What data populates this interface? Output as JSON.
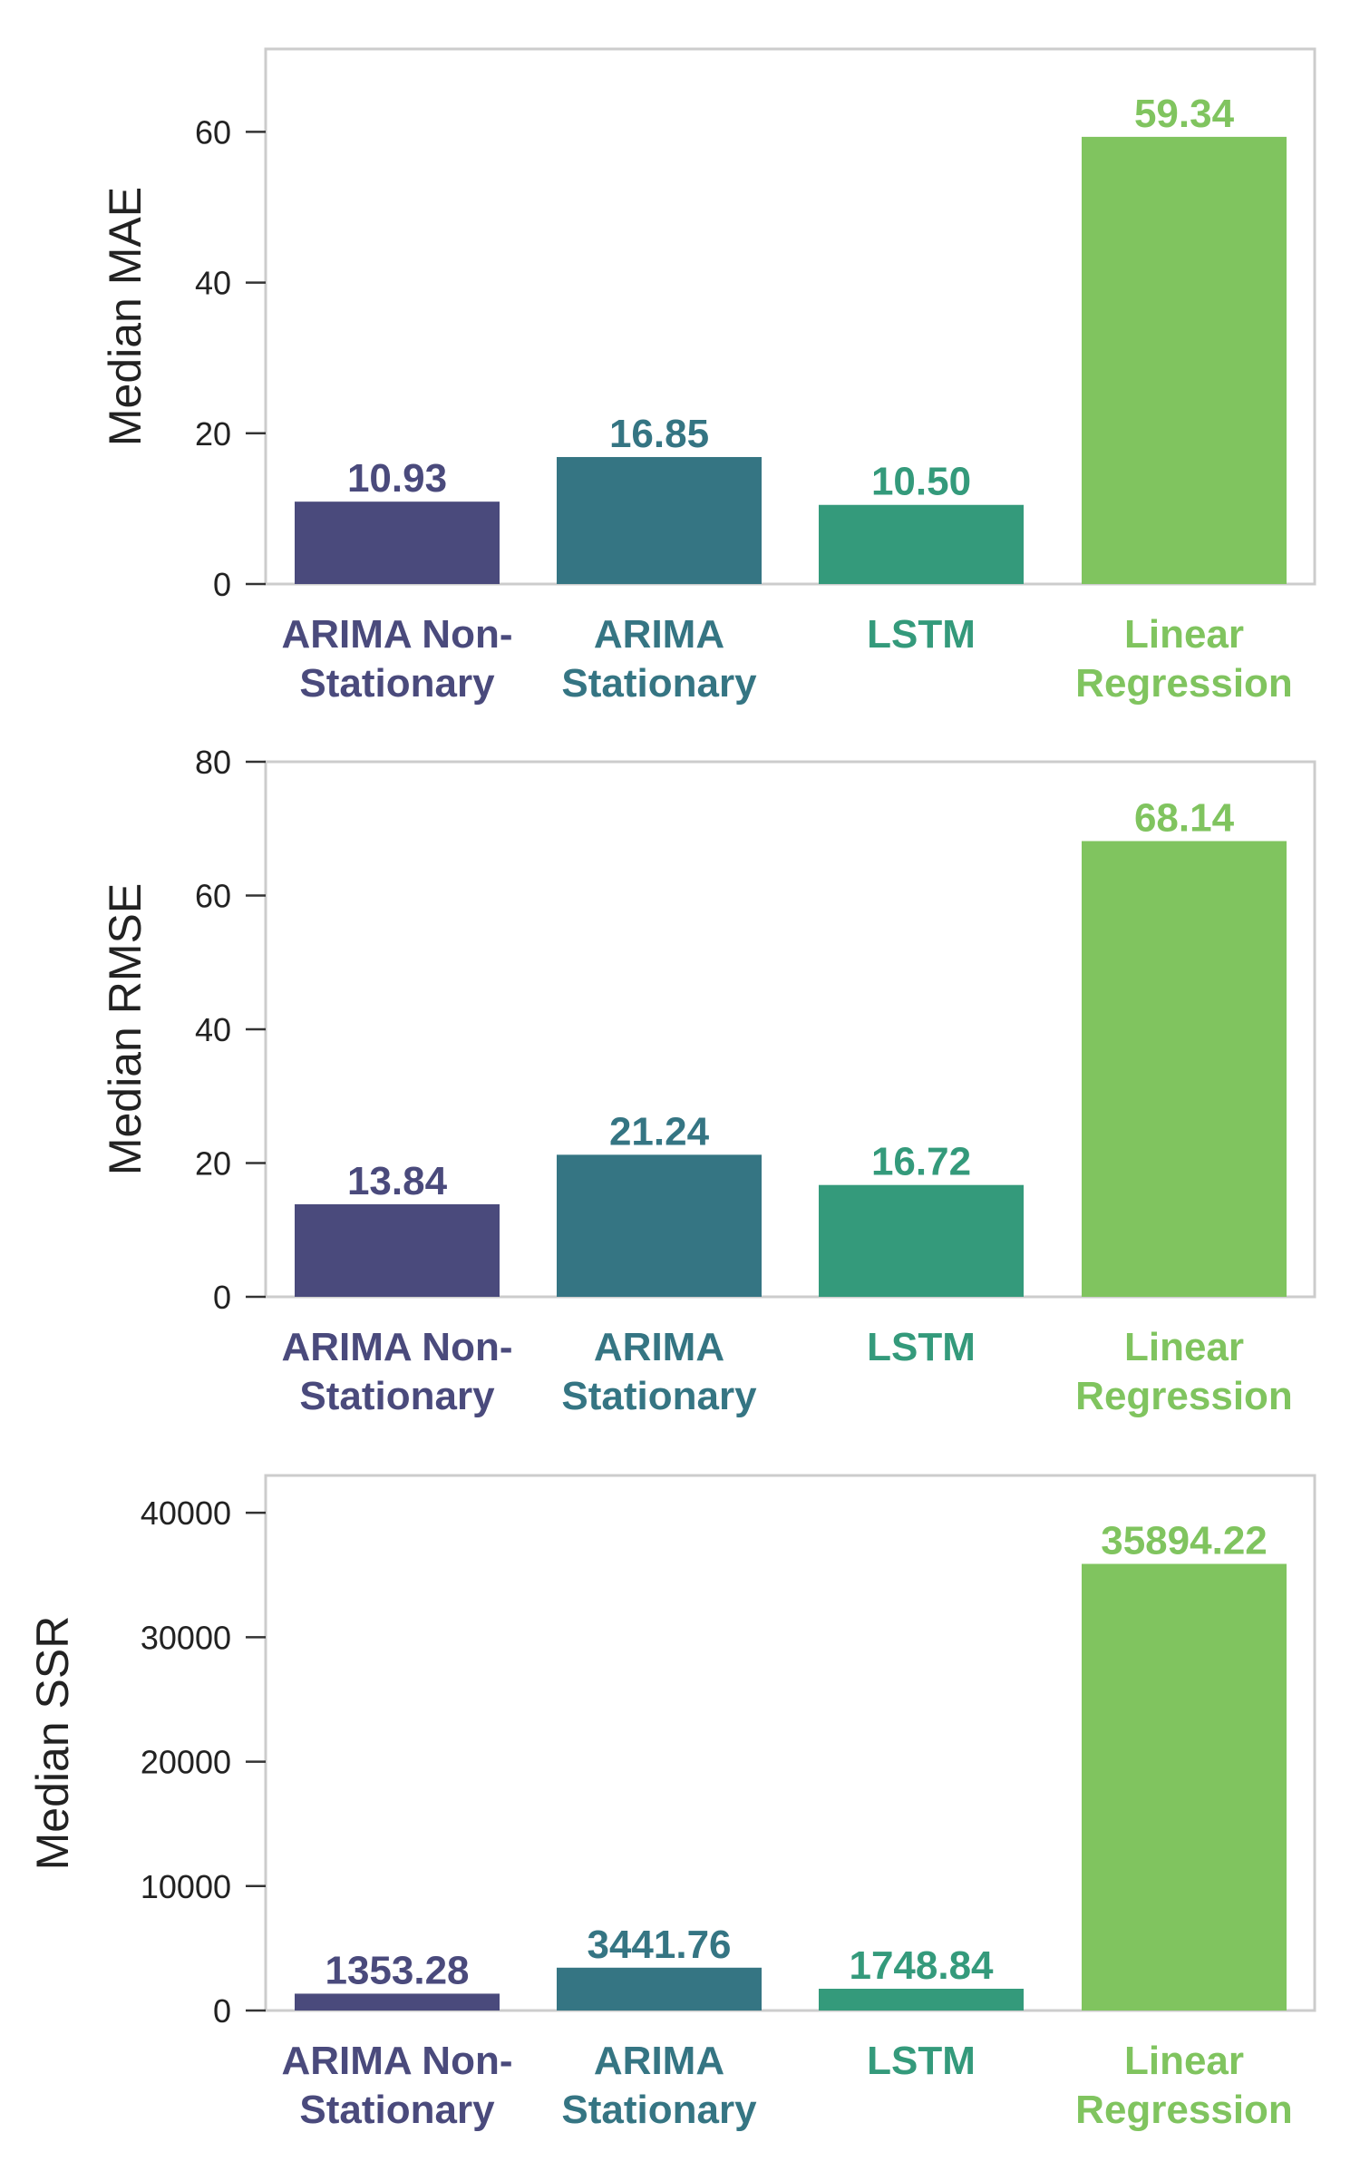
{
  "chart_data": [
    {
      "type": "bar",
      "ylabel": "Median MAE",
      "ylim": [
        0,
        71
      ],
      "yticks": [
        0,
        20,
        40,
        60
      ],
      "grid": false,
      "categories": [
        [
          "ARIMA Non-",
          "Stationary"
        ],
        [
          "ARIMA",
          "Stationary"
        ],
        [
          "LSTM"
        ],
        [
          "Linear",
          "Regression"
        ]
      ],
      "values": [
        10.93,
        16.85,
        10.5,
        59.34
      ],
      "value_labels": [
        "10.93",
        "16.85",
        "10.50",
        "59.34"
      ],
      "colors": [
        "#4a4a7c",
        "#357583",
        "#349a7b",
        "#80c45f"
      ]
    },
    {
      "type": "bar",
      "ylabel": "Median RMSE",
      "ylim": [
        0,
        80
      ],
      "yticks": [
        0,
        20,
        40,
        60,
        80
      ],
      "grid": false,
      "categories": [
        [
          "ARIMA Non-",
          "Stationary"
        ],
        [
          "ARIMA",
          "Stationary"
        ],
        [
          "LSTM"
        ],
        [
          "Linear",
          "Regression"
        ]
      ],
      "values": [
        13.84,
        21.24,
        16.72,
        68.14
      ],
      "value_labels": [
        "13.84",
        "21.24",
        "16.72",
        "68.14"
      ],
      "colors": [
        "#4a4a7c",
        "#357583",
        "#349a7b",
        "#80c45f"
      ]
    },
    {
      "type": "bar",
      "ylabel": "Median SSR",
      "ylim": [
        0,
        43000
      ],
      "yticks": [
        0,
        10000,
        20000,
        30000,
        40000
      ],
      "grid": false,
      "categories": [
        [
          "ARIMA Non-",
          "Stationary"
        ],
        [
          "ARIMA",
          "Stationary"
        ],
        [
          "LSTM"
        ],
        [
          "Linear",
          "Regression"
        ]
      ],
      "values": [
        1353.28,
        3441.76,
        1748.84,
        35894.22
      ],
      "value_labels": [
        "1353.28",
        "3441.76",
        "1748.84",
        "35894.22"
      ],
      "colors": [
        "#4a4a7c",
        "#357583",
        "#349a7b",
        "#80c45f"
      ]
    }
  ]
}
